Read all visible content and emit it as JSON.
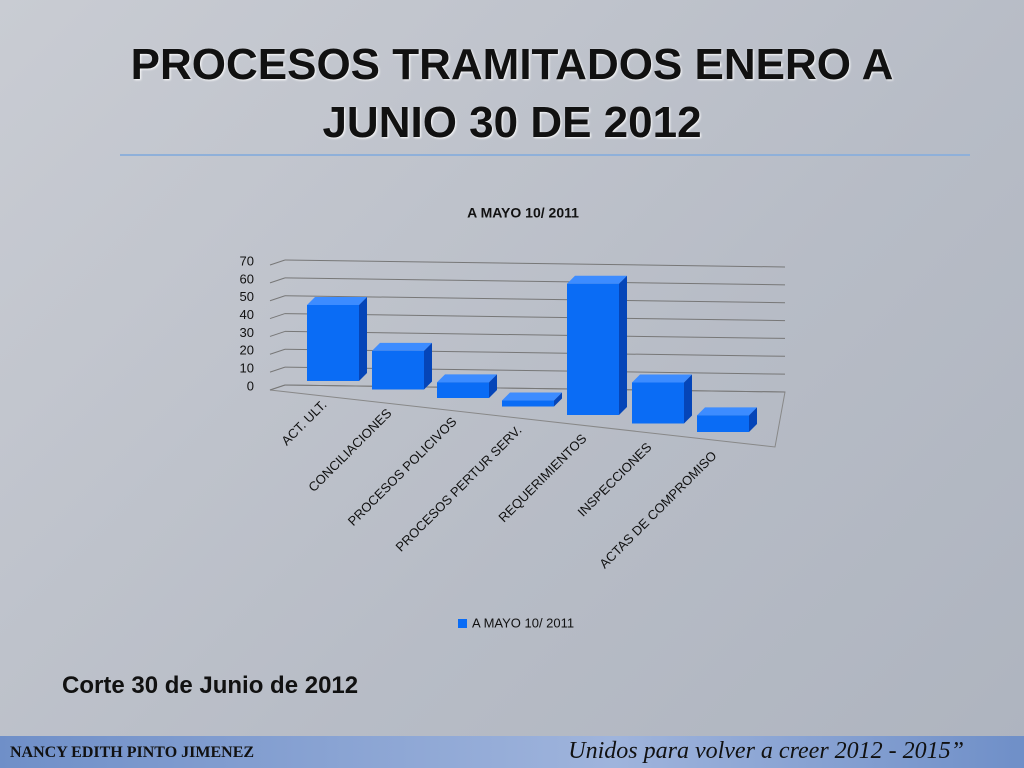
{
  "slide": {
    "title": "PROCESOS TRAMITADOS ENERO A JUNIO 30 DE 2012",
    "note": "Corte  30 de Junio de 2012",
    "footer_name": "NANCY EDITH PINTO JIMENEZ",
    "footer_slogan": "Unidos para volver a creer 2012 - 2015”"
  },
  "chart_data": {
    "type": "bar",
    "title": "A MAYO 10/ 2011",
    "categories": [
      "ACT. ULT.",
      "CONCILIACIONES",
      "PROCESOS POLICIVOS",
      "PROCESOS PERTUR SERV.",
      "REQUERIMIENTOS",
      "INSPECCIONES",
      "ACTAS DE COMPROMISO"
    ],
    "series": [
      {
        "name": "A MAYO 10/ 2011",
        "color": "#0a6cf5",
        "values": [
          40,
          20,
          8,
          3,
          65,
          20,
          8
        ]
      }
    ],
    "ylim": [
      0,
      70
    ],
    "yticks": [
      0,
      10,
      20,
      30,
      40,
      50,
      60,
      70
    ],
    "grid": true,
    "legend": "bottom"
  }
}
